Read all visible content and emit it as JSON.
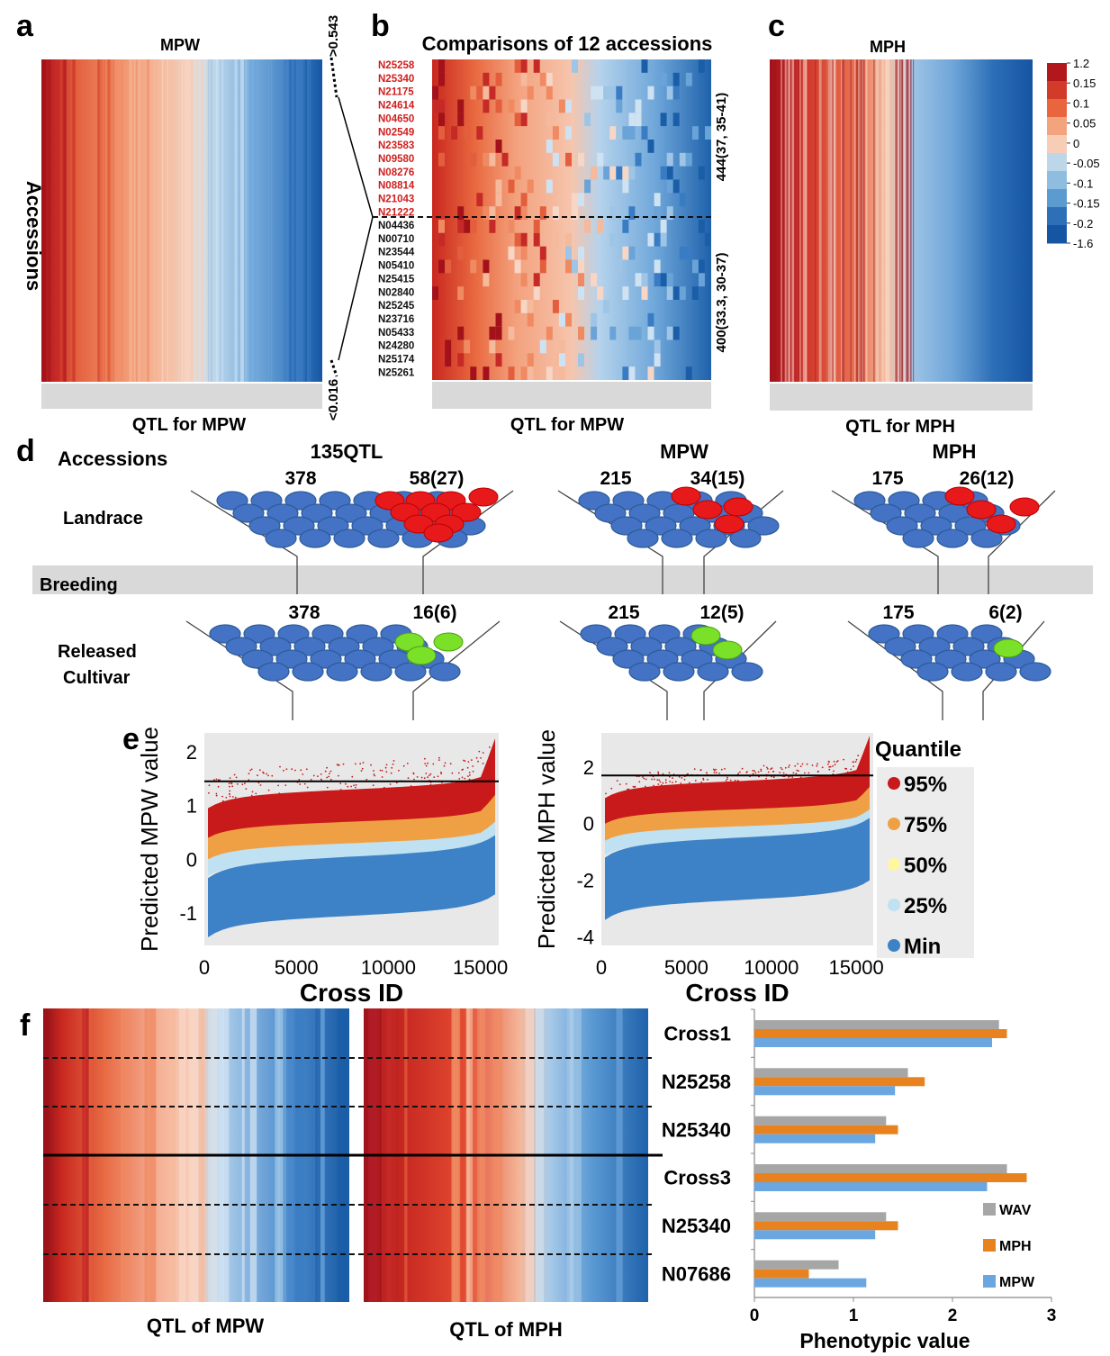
{
  "panels": {
    "a": {
      "letter": "a",
      "title": "MPW",
      "ylabel": "Accessions",
      "xlabel": "QTL for MPW"
    },
    "b": {
      "letter": "b",
      "title": "Comparisons of 12 accessions",
      "xlabel": "QTL for MPW",
      "red_labels": [
        "N25258",
        "N25340",
        "N21175",
        "N24614",
        "N04650",
        "N02549",
        "N23583",
        "N09580",
        "N08276",
        "N08814",
        "N21043",
        "N21222"
      ],
      "black_labels": [
        "N04436",
        "N00710",
        "N23544",
        "N05410",
        "N25415",
        "N02840",
        "N25245",
        "N23716",
        "N05433",
        "N24280",
        "N25174",
        "N25261"
      ],
      "bracket_top": "444(37, 35-41)",
      "bracket_bottom": "400(33.3, 30-37)",
      "threshold_top": ">0.543",
      "threshold_bottom": "<0.016"
    },
    "c": {
      "letter": "c",
      "title": "MPH",
      "xlabel": "QTL for MPH",
      "colorbar": [
        "1.2",
        "0.15",
        "0.1",
        "0.05",
        "0",
        "-0.05",
        "-0.1",
        "-0.15",
        "-0.2",
        "-1.6"
      ],
      "colorbar_colors": [
        "#b2171b",
        "#d23a2a",
        "#e8653e",
        "#f4a37f",
        "#f8cdb6",
        "#bcd6ea",
        "#8ebde0",
        "#5b9bd0",
        "#2e70b8",
        "#1655a3"
      ]
    },
    "d": {
      "letter": "d",
      "accessions": "Accessions",
      "landrace": "Landrace",
      "breeding": "Breeding",
      "released1": "Released",
      "released2": "Cultivar",
      "groups": [
        {
          "title": "135QTL",
          "top_blue": "378",
          "top_red": "58(27)",
          "bot_blue": "378",
          "bot_green": "16(6)"
        },
        {
          "title": "MPW",
          "top_blue": "215",
          "top_red": "34(15)",
          "bot_blue": "215",
          "bot_green": "12(5)"
        },
        {
          "title": "MPH",
          "top_blue": "175",
          "top_red": "26(12)",
          "bot_blue": "175",
          "bot_green": "6(2)"
        }
      ]
    },
    "e": {
      "letter": "e",
      "quantile_title": "Quantile",
      "legend": [
        {
          "label": "95%",
          "color": "#c81a1a"
        },
        {
          "label": "75%",
          "color": "#f0a044"
        },
        {
          "label": "50%",
          "color": "#fff6a0"
        },
        {
          "label": "25%",
          "color": "#bfe1f2"
        },
        {
          "label": "Min",
          "color": "#3d82c6"
        }
      ],
      "plot1": {
        "ylabel": "Predicted MPW value",
        "xlabel": "Cross ID",
        "yticks": [
          "2",
          "1",
          "0",
          "-1"
        ],
        "xticks": [
          "0",
          "5000",
          "10000",
          "15000"
        ]
      },
      "plot2": {
        "ylabel": "Predicted MPH value",
        "xlabel": "Cross ID",
        "yticks": [
          "2",
          "0",
          "-2",
          "-4"
        ],
        "xticks": [
          "0",
          "5000",
          "10000",
          "15000"
        ]
      }
    },
    "f": {
      "letter": "f",
      "xlabel_left": "QTL of MPW",
      "xlabel_right": "QTL of MPH"
    }
  },
  "chart_data": {
    "type": "bar",
    "orientation": "horizontal",
    "categories": [
      "Cross1",
      "N25258",
      "N25340",
      "Cross3",
      "N25340",
      "N07686"
    ],
    "series": [
      {
        "name": "WAV",
        "color": "#a6a6a6",
        "values": [
          2.47,
          1.55,
          1.33,
          2.55,
          1.33,
          0.85
        ]
      },
      {
        "name": "MPH",
        "color": "#e8821f",
        "values": [
          2.55,
          1.72,
          1.45,
          2.75,
          1.45,
          0.55
        ]
      },
      {
        "name": "MPW",
        "color": "#6aa7e1",
        "values": [
          2.4,
          1.42,
          1.22,
          2.35,
          1.22,
          1.13
        ]
      }
    ],
    "xlabel": "Phenotypic value",
    "xlim": [
      0,
      3
    ],
    "xticks": [
      "0",
      "1",
      "2",
      "3"
    ],
    "legend_position": "bottom-right"
  }
}
